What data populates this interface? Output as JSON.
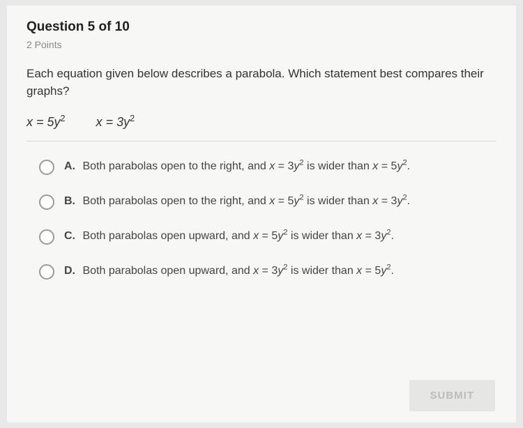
{
  "header": {
    "title": "Question 5 of 10",
    "points": "2 Points"
  },
  "prompt": "Each equation given below describes a parabola. Which statement best compares their graphs?",
  "equations": {
    "eq1_html": "<span class='ivar'>x</span> = 5<span class='ivar'>y</span><sup>2</sup>",
    "eq2_html": "<span class='ivar'>x</span> = 3<span class='ivar'>y</span><sup>2</sup>"
  },
  "options": [
    {
      "label": "A.",
      "html": "Both parabolas open to the right, and <span class='eq'><span class='ivar'>x</span> = 3<span class='ivar'>y</span><sup>2</sup></span> is wider than <span class='eq'><span class='ivar'>x</span> = 5<span class='ivar'>y</span><sup>2</sup></span>."
    },
    {
      "label": "B.",
      "html": "Both parabolas open to the right, and <span class='eq'><span class='ivar'>x</span> = 5<span class='ivar'>y</span><sup>2</sup></span> is wider than <span class='eq'><span class='ivar'>x</span> = 3<span class='ivar'>y</span><sup>2</sup></span>."
    },
    {
      "label": "C.",
      "html": "Both parabolas open upward, and <span class='eq'><span class='ivar'>x</span> = 5<span class='ivar'>y</span><sup>2</sup></span> is wider than <span class='eq'><span class='ivar'>x</span> = 3<span class='ivar'>y</span><sup>2</sup></span>."
    },
    {
      "label": "D.",
      "html": "Both parabolas open upward, and <span class='eq'><span class='ivar'>x</span> = 3<span class='ivar'>y</span><sup>2</sup></span> is wider than <span class='eq'><span class='ivar'>x</span> = 5<span class='ivar'>y</span><sup>2</sup></span>."
    }
  ],
  "submit_label": "SUBMIT",
  "colors": {
    "page_bg": "#e8e8e8",
    "card_bg": "#f7f7f5",
    "text_primary": "#333",
    "text_muted": "#888",
    "radio_border": "#9a9a9a",
    "divider": "#d8d8d6",
    "submit_bg": "#e6e6e4",
    "submit_text": "#bcbcba"
  }
}
